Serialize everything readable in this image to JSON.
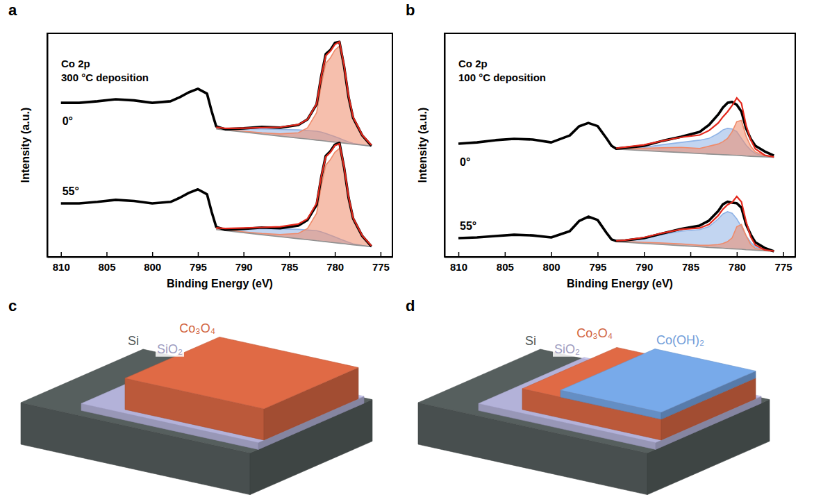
{
  "chart_data": [
    {
      "type": "line",
      "panel": "a",
      "annotations": [
        "Co 2p",
        "300 °C deposition"
      ],
      "x_label": "Binding Energy (eV)",
      "y_label": "Intensity (a.u.)",
      "xlim": [
        811.5,
        773.7
      ],
      "xticks": [
        810,
        805,
        800,
        795,
        790,
        785,
        780,
        775
      ],
      "ylim": [
        0,
        10
      ],
      "yticks": [],
      "tick_labels": "x",
      "grid": false,
      "series": [
        {
          "name": "0°",
          "color": "#000000",
          "x": [
            810,
            808,
            806,
            804,
            802,
            800,
            798,
            797,
            796,
            795,
            794,
            793.5,
            793,
            792,
            790,
            788,
            786,
            784,
            783,
            782,
            781.5,
            781,
            780.5,
            780,
            779.5,
            779,
            778.5,
            778,
            777,
            776
          ],
          "values": [
            6.89,
            6.89,
            6.96,
            7.05,
            7.0,
            6.89,
            6.96,
            7.14,
            7.36,
            7.52,
            7.3,
            6.52,
            5.84,
            5.71,
            5.75,
            5.81,
            5.78,
            5.9,
            6.15,
            6.83,
            8.07,
            9.07,
            9.25,
            9.57,
            9.62,
            8.54,
            7.14,
            6.21,
            5.43,
            4.97
          ],
          "fit": {
            "x": [
              793,
              792,
              790,
              788,
              786,
              784,
              783,
              782,
              781.5,
              781,
              780.5,
              780,
              779.5,
              779,
              778.5,
              778,
              777,
              776
            ],
            "envelope": {
              "color": "#e3281c",
              "values": [
                5.8,
                5.75,
                5.76,
                5.78,
                5.8,
                5.92,
                6.15,
                6.85,
                8.05,
                9.0,
                9.2,
                9.5,
                9.62,
                8.6,
                7.2,
                6.25,
                5.45,
                5.0
              ]
            },
            "components": [
              {
                "color": "#8fb3e6",
                "values": [
                  5.74,
                  5.72,
                  5.72,
                  5.72,
                  5.7,
                  5.68,
                  5.65,
                  5.62,
                  5.58,
                  5.52,
                  5.45,
                  5.38,
                  5.3,
                  5.22,
                  5.14,
                  5.08,
                  5.01,
                  4.95
                ]
              },
              {
                "color": "#ef8a6a",
                "values": [
                  5.78,
                  5.7,
                  5.62,
                  5.55,
                  5.5,
                  5.55,
                  5.77,
                  6.45,
                  7.67,
                  8.66,
                  8.9,
                  9.25,
                  9.43,
                  8.47,
                  7.12,
                  6.21,
                  5.44,
                  5.0
                ]
              }
            ],
            "background": {
              "color": "#909090",
              "values": [
                5.72,
                5.67,
                5.58,
                5.49,
                5.4,
                5.31,
                5.27,
                5.22,
                5.2,
                5.18,
                5.15,
                5.13,
                5.11,
                5.09,
                5.06,
                5.04,
                5.0,
                4.95
              ]
            }
          }
        },
        {
          "name": "55°",
          "color": "#000000",
          "x": [
            810,
            808,
            806,
            804,
            802,
            800,
            798,
            797,
            796,
            795,
            794,
            793.5,
            793,
            792,
            790,
            788,
            786,
            784,
            783,
            782,
            781.5,
            781,
            780.5,
            780,
            779.5,
            779,
            778.5,
            778,
            777,
            776
          ],
          "values": [
            2.39,
            2.39,
            2.46,
            2.55,
            2.5,
            2.39,
            2.46,
            2.64,
            2.86,
            3.02,
            2.8,
            2.02,
            1.34,
            1.21,
            1.25,
            1.31,
            1.28,
            1.4,
            1.65,
            2.33,
            3.55,
            4.52,
            4.72,
            5.02,
            5.1,
            4.02,
            2.64,
            1.71,
            0.93,
            0.47
          ],
          "fit": {
            "x": [
              793,
              792,
              790,
              788,
              786,
              784,
              783,
              782,
              781.5,
              781,
              780.5,
              780,
              779.5,
              779,
              778.5,
              778,
              777,
              776
            ],
            "envelope": {
              "color": "#e3281c",
              "values": [
                1.3,
                1.27,
                1.29,
                1.32,
                1.35,
                1.47,
                1.7,
                2.4,
                3.57,
                4.47,
                4.67,
                4.98,
                5.06,
                4.05,
                2.69,
                1.74,
                0.95,
                0.5
              ]
            },
            "components": [
              {
                "color": "#8fb3e6",
                "values": [
                  1.25,
                  1.24,
                  1.25,
                  1.26,
                  1.25,
                  1.23,
                  1.2,
                  1.17,
                  1.12,
                  1.05,
                  0.97,
                  0.89,
                  0.81,
                  0.73,
                  0.65,
                  0.58,
                  0.51,
                  0.45
                ]
              },
              {
                "color": "#ef8a6a",
                "values": [
                  1.28,
                  1.2,
                  1.12,
                  1.05,
                  1.0,
                  1.05,
                  1.27,
                  1.95,
                  3.15,
                  4.1,
                  4.35,
                  4.68,
                  4.85,
                  3.92,
                  2.6,
                  1.7,
                  0.94,
                  0.5
                ]
              }
            ],
            "background": {
              "color": "#909090",
              "values": [
                1.22,
                1.17,
                1.08,
                0.99,
                0.9,
                0.81,
                0.77,
                0.72,
                0.7,
                0.68,
                0.65,
                0.63,
                0.61,
                0.59,
                0.56,
                0.54,
                0.5,
                0.45
              ]
            }
          }
        }
      ]
    },
    {
      "type": "line",
      "panel": "b",
      "annotations": [
        "Co 2p",
        "100 °C deposition"
      ],
      "x_label": "Binding Energy (eV)",
      "y_label": "Intensity (a.u.)",
      "xlim": [
        811.5,
        773.7
      ],
      "xticks": [
        810,
        805,
        800,
        795,
        790,
        785,
        780,
        775
      ],
      "ylim": [
        0,
        10
      ],
      "yticks": [],
      "tick_labels": "x",
      "grid": false,
      "series": [
        {
          "name": "0°",
          "color": "#000000",
          "x": [
            810,
            808,
            806,
            804,
            802,
            800,
            798,
            797,
            796,
            795,
            794,
            793.5,
            793,
            792,
            790,
            788,
            786,
            784,
            783,
            782,
            781.5,
            781,
            780.5,
            780,
            779.5,
            779,
            778.5,
            778,
            777,
            776
          ],
          "values": [
            5.06,
            5.12,
            5.22,
            5.28,
            5.25,
            5.12,
            5.43,
            5.84,
            5.99,
            5.85,
            5.28,
            4.97,
            4.84,
            4.88,
            4.97,
            5.19,
            5.37,
            5.59,
            5.9,
            6.37,
            6.68,
            6.89,
            6.93,
            6.8,
            6.5,
            5.75,
            5.28,
            4.97,
            4.72,
            4.53
          ],
          "fit": {
            "x": [
              793,
              792,
              790,
              788,
              786,
              784,
              783,
              782,
              781.5,
              781,
              780.5,
              780,
              779.5,
              779,
              778.5,
              778,
              777,
              776
            ],
            "envelope": {
              "color": "#e3281c",
              "values": [
                4.86,
                4.91,
                5.01,
                5.19,
                5.35,
                5.45,
                5.65,
                5.99,
                6.26,
                6.49,
                6.77,
                7.11,
                6.87,
                5.89,
                5.23,
                4.83,
                4.55,
                4.47
              ]
            },
            "components": [
              {
                "color": "#8fb3e6",
                "values": [
                  4.84,
                  4.86,
                  4.9,
                  5.02,
                  5.12,
                  5.22,
                  5.3,
                  5.52,
                  5.68,
                  5.75,
                  5.72,
                  5.6,
                  5.3,
                  5.0,
                  4.78,
                  4.62,
                  4.5,
                  4.46
                ]
              },
              {
                "color": "#ef8a6a",
                "values": [
                  4.84,
                  4.85,
                  4.86,
                  4.88,
                  4.9,
                  4.85,
                  4.95,
                  5.05,
                  5.15,
                  5.3,
                  5.6,
                  6.05,
                  6.1,
                  5.4,
                  4.95,
                  4.7,
                  4.52,
                  4.46
                ]
              }
            ],
            "background": {
              "color": "#909090",
              "values": [
                4.82,
                4.8,
                4.75,
                4.71,
                4.67,
                4.62,
                4.6,
                4.58,
                4.57,
                4.56,
                4.55,
                4.54,
                4.53,
                4.51,
                4.5,
                4.49,
                4.47,
                4.45
              ]
            }
          }
        },
        {
          "name": "55°",
          "color": "#000000",
          "x": [
            810,
            808,
            806,
            804,
            802,
            800,
            798,
            797,
            796,
            795,
            794,
            793.5,
            793,
            792,
            790,
            788,
            786,
            784,
            783,
            782,
            781.5,
            781,
            780.5,
            780,
            779.5,
            779,
            778.5,
            778,
            777,
            776
          ],
          "values": [
            0.84,
            0.87,
            0.93,
            0.99,
            0.96,
            0.87,
            1.15,
            1.6,
            1.8,
            1.65,
            1.05,
            0.78,
            0.71,
            0.74,
            0.84,
            1.05,
            1.25,
            1.4,
            1.62,
            2.05,
            2.35,
            2.47,
            2.42,
            2.4,
            2.2,
            1.45,
            1.0,
            0.65,
            0.4,
            0.25
          ],
          "fit": {
            "x": [
              793,
              792,
              790,
              788,
              786,
              784,
              783,
              782,
              781.5,
              781,
              780.5,
              780,
              779.5,
              779,
              778.5,
              778,
              777,
              776
            ],
            "envelope": {
              "color": "#e3281c",
              "values": [
                0.72,
                0.75,
                0.87,
                1.07,
                1.23,
                1.29,
                1.45,
                1.85,
                2.13,
                2.33,
                2.44,
                2.7,
                2.46,
                1.58,
                0.89,
                0.53,
                0.31,
                0.26
              ]
            },
            "components": [
              {
                "color": "#8fb3e6",
                "values": [
                  0.7,
                  0.72,
                  0.82,
                  1.0,
                  1.15,
                  1.22,
                  1.35,
                  1.7,
                  1.92,
                  2.02,
                  1.95,
                  1.7,
                  1.35,
                  0.95,
                  0.65,
                  0.45,
                  0.3,
                  0.26
                ]
              },
              {
                "color": "#ef8a6a",
                "values": [
                  0.7,
                  0.68,
                  0.65,
                  0.62,
                  0.58,
                  0.52,
                  0.52,
                  0.55,
                  0.6,
                  0.68,
                  0.85,
                  1.35,
                  1.45,
                  0.95,
                  0.55,
                  0.38,
                  0.28,
                  0.25
                ]
              }
            ],
            "background": {
              "color": "#909090",
              "values": [
                0.68,
                0.65,
                0.6,
                0.55,
                0.5,
                0.45,
                0.42,
                0.4,
                0.39,
                0.37,
                0.36,
                0.35,
                0.34,
                0.32,
                0.31,
                0.3,
                0.27,
                0.25
              ]
            }
          }
        }
      ]
    }
  ],
  "diagrams": [
    {
      "panel": "c",
      "layers": [
        {
          "label": "Si",
          "color": "#565f5e"
        },
        {
          "label": "SiO₂",
          "color": "#c3c1ee"
        },
        {
          "label": "Co₃O₄",
          "color": "#e06a45"
        }
      ]
    },
    {
      "panel": "d",
      "layers": [
        {
          "label": "Si",
          "color": "#565f5e"
        },
        {
          "label": "SiO₂",
          "color": "#c3c1ee"
        },
        {
          "label": "Co₃O₄",
          "color": "#e06a45"
        },
        {
          "label": "Co(OH)₂",
          "color": "#78aaea"
        }
      ]
    }
  ]
}
